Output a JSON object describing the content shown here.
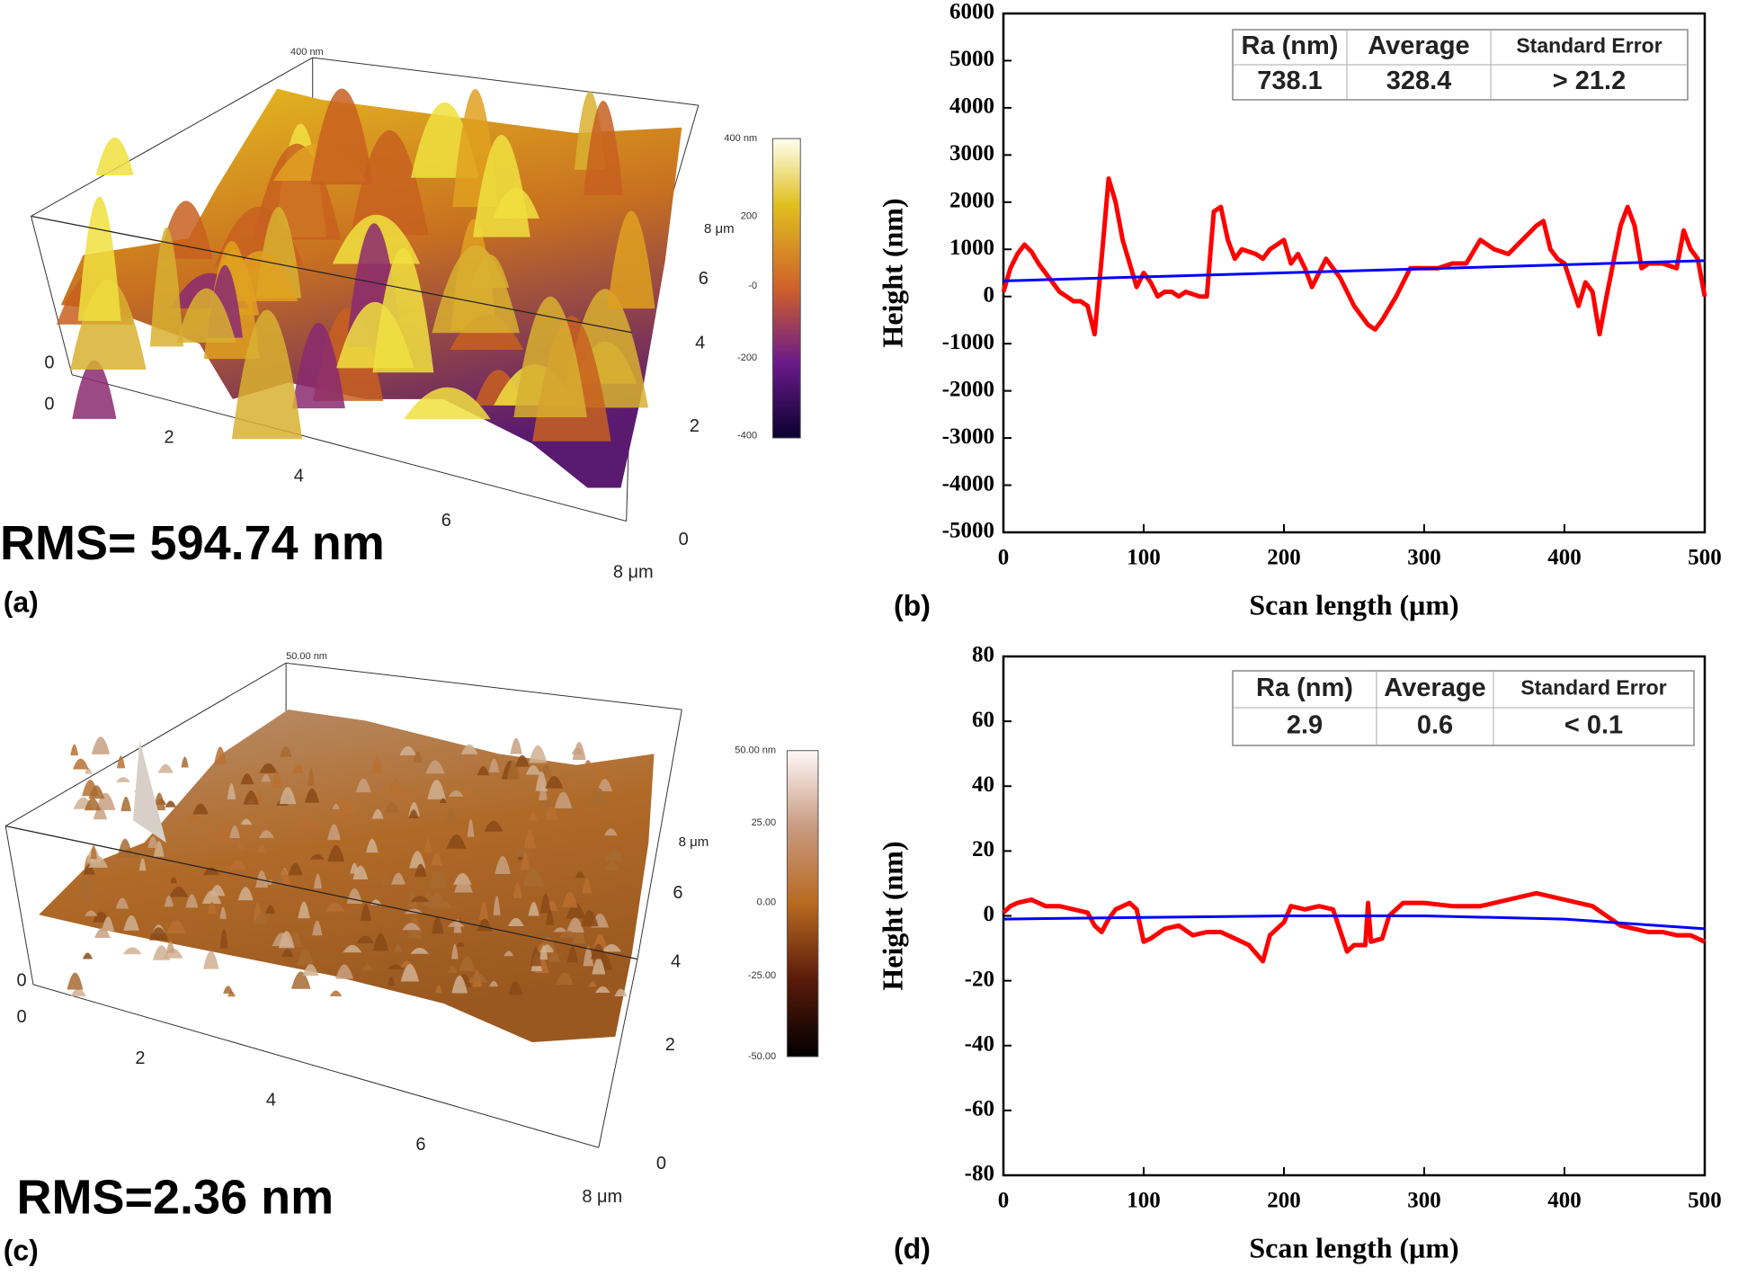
{
  "surfaces": [
    {
      "panel_label": "(a)",
      "rms": "RMS= 594.74 nm",
      "z_label": "400 nm",
      "z_origin": "0",
      "colorbar_ticks": [
        "400 nm",
        "200",
        "-0",
        "-200",
        "-400"
      ],
      "front_ticks": [
        "0",
        "2",
        "4",
        "6",
        "8 μm"
      ],
      "side_ticks": [
        "0",
        "2",
        "4",
        "6",
        "8 μm"
      ]
    },
    {
      "panel_label": "(c)",
      "rms": "RMS=2.36 nm",
      "z_label": "50.00 nm",
      "z_origin": "0",
      "colorbar_ticks": [
        "50.00 nm",
        "25.00",
        "0.00",
        "-25.00",
        "-50.00"
      ],
      "front_ticks": [
        "0",
        "2",
        "4",
        "6",
        "8 μm"
      ],
      "side_ticks": [
        "0",
        "2",
        "4",
        "6",
        "8 μm"
      ]
    }
  ],
  "chart_data": [
    {
      "type": "line",
      "panel_label": "(b)",
      "xlabel": "Scan length (μm)",
      "ylabel": "Height (nm)",
      "xlim": [
        0,
        500
      ],
      "ylim": [
        -5000,
        6000
      ],
      "xticks": [
        0,
        100,
        200,
        300,
        400,
        500
      ],
      "yticks": [
        -5000,
        -4000,
        -3000,
        -2000,
        -1000,
        0,
        1000,
        2000,
        3000,
        4000,
        5000,
        6000
      ],
      "series": [
        {
          "color": "#ff0000",
          "x": [
            0,
            5,
            10,
            15,
            20,
            25,
            30,
            35,
            40,
            45,
            50,
            55,
            60,
            65,
            70,
            75,
            80,
            85,
            90,
            95,
            100,
            105,
            110,
            115,
            120,
            125,
            130,
            140,
            145,
            150,
            155,
            160,
            165,
            170,
            180,
            185,
            190,
            200,
            205,
            210,
            215,
            220,
            225,
            230,
            235,
            240,
            250,
            260,
            265,
            270,
            280,
            290,
            300,
            310,
            320,
            330,
            340,
            350,
            360,
            370,
            380,
            385,
            390,
            395,
            400,
            410,
            415,
            420,
            425,
            430,
            440,
            445,
            450,
            455,
            460,
            470,
            480,
            485,
            490,
            495,
            500
          ],
          "values": [
            100,
            600,
            900,
            1100,
            950,
            700,
            500,
            300,
            100,
            0,
            -100,
            -100,
            -200,
            -800,
            800,
            2500,
            2000,
            1200,
            700,
            200,
            500,
            300,
            0,
            100,
            100,
            0,
            100,
            0,
            0,
            1800,
            1900,
            1200,
            800,
            1000,
            900,
            800,
            1000,
            1200,
            700,
            900,
            600,
            200,
            500,
            800,
            600,
            400,
            -200,
            -600,
            -700,
            -500,
            0,
            600,
            600,
            600,
            700,
            700,
            1200,
            1000,
            900,
            1200,
            1500,
            1600,
            1000,
            800,
            700,
            -200,
            300,
            100,
            -800,
            0,
            1500,
            1900,
            1500,
            600,
            700,
            700,
            600,
            1400,
            1000,
            800,
            0
          ]
        },
        {
          "color": "#0000ff",
          "x": [
            0,
            500
          ],
          "values": [
            330,
            760
          ]
        }
      ],
      "table": {
        "header": [
          "Ra (nm)",
          "Average",
          "Standard Error"
        ],
        "rows": [
          [
            "738.1",
            "328.4",
            "> 21.2"
          ]
        ]
      }
    },
    {
      "type": "line",
      "panel_label": "(d)",
      "xlabel": "Scan length (μm)",
      "ylabel": "Height (nm)",
      "xlim": [
        0,
        500
      ],
      "ylim": [
        -80,
        80
      ],
      "xticks": [
        0,
        100,
        200,
        300,
        400,
        500
      ],
      "yticks": [
        -80,
        -60,
        -40,
        -20,
        0,
        20,
        40,
        60,
        80
      ],
      "series": [
        {
          "color": "#ff0000",
          "x": [
            0,
            5,
            10,
            20,
            30,
            40,
            50,
            60,
            65,
            70,
            75,
            80,
            90,
            95,
            100,
            105,
            115,
            125,
            135,
            145,
            155,
            165,
            175,
            185,
            190,
            200,
            205,
            215,
            225,
            235,
            245,
            250,
            258,
            260,
            262,
            270,
            275,
            285,
            300,
            320,
            340,
            360,
            380,
            400,
            420,
            430,
            440,
            450,
            460,
            470,
            480,
            490,
            500
          ],
          "values": [
            1,
            3,
            4,
            5,
            3,
            3,
            2,
            1,
            -3,
            -5,
            -1,
            2,
            4,
            2,
            -8,
            -7,
            -4,
            -3,
            -6,
            -5,
            -5,
            -7,
            -9,
            -14,
            -6,
            -2,
            3,
            2,
            3,
            2,
            -11,
            -9,
            -9,
            4,
            -8,
            -7,
            0,
            4,
            4,
            3,
            3,
            5,
            7,
            5,
            3,
            0,
            -3,
            -4,
            -5,
            -5,
            -6,
            -6,
            -8
          ]
        },
        {
          "color": "#0000ff",
          "x": [
            0,
            100,
            200,
            300,
            400,
            500
          ],
          "values": [
            -1,
            -0.5,
            0,
            0,
            -1,
            -4
          ]
        }
      ],
      "table": {
        "header": [
          "Ra (nm)",
          "Average",
          "Standard Error"
        ],
        "rows": [
          [
            "2.9",
            "0.6",
            "< 0.1"
          ]
        ]
      }
    }
  ]
}
